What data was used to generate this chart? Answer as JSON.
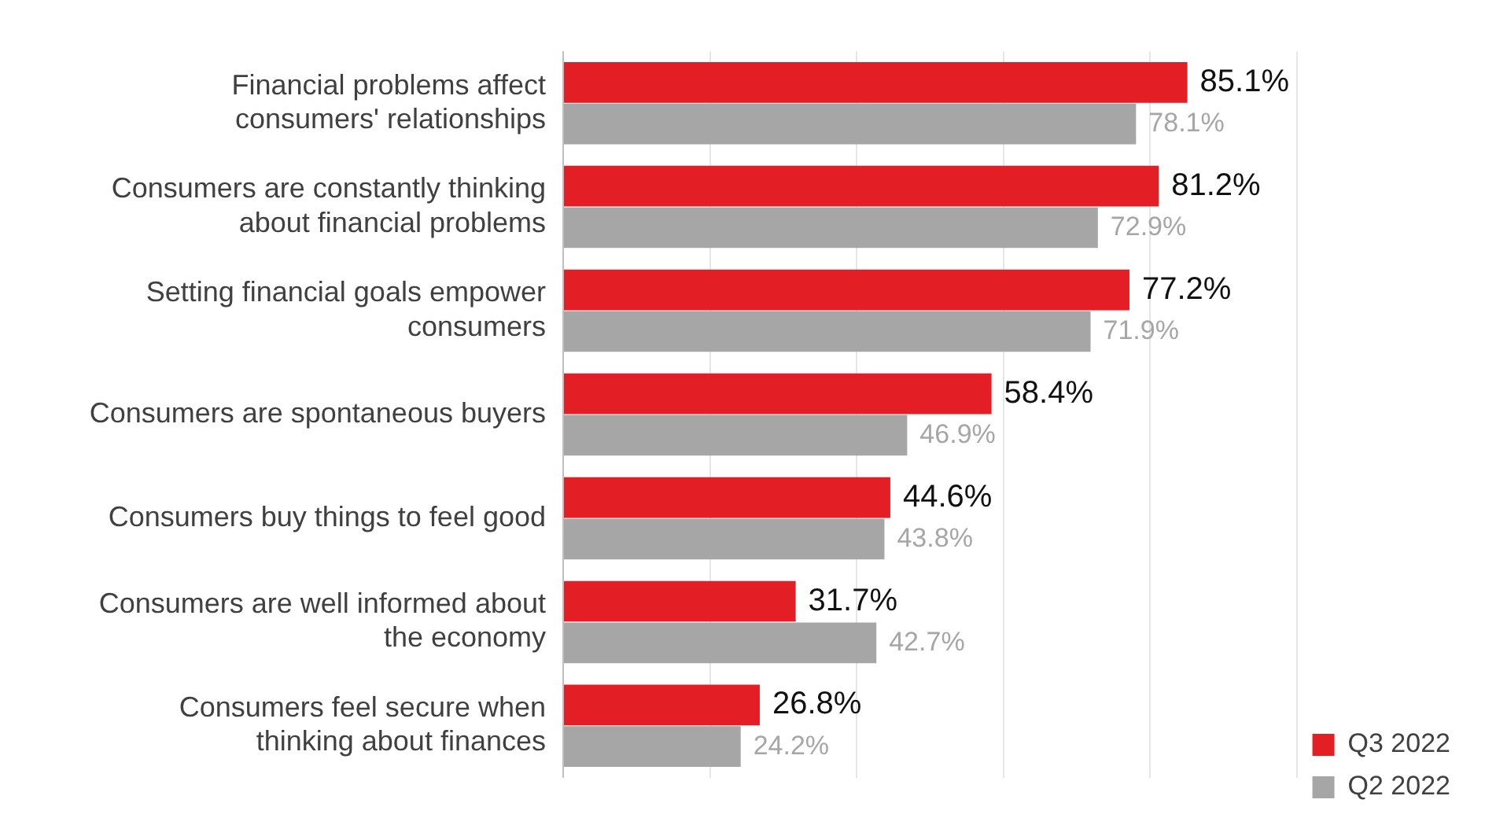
{
  "chart_data": {
    "type": "bar",
    "orientation": "horizontal",
    "categories": [
      "Financial problems affect consumers' relationships",
      "Consumers are constantly thinking about financial problems",
      "Setting financial goals empower consumers",
      "Consumers are spontaneous buyers",
      "Consumers buy things to feel good",
      "Consumers are well informed about the economy",
      "Consumers feel secure when thinking about finances"
    ],
    "series": [
      {
        "name": "Q3 2022",
        "color": "#e31e24",
        "values": [
          85.1,
          81.2,
          77.2,
          58.4,
          44.6,
          31.7,
          26.8
        ],
        "value_labels": [
          "85.1%",
          "81.2%",
          "77.2%",
          "58.4%",
          "44.6%",
          "31.7%",
          "26.8%"
        ]
      },
      {
        "name": "Q2 2022",
        "color": "#a6a6a6",
        "values": [
          78.1,
          72.9,
          71.9,
          46.9,
          43.8,
          42.7,
          24.2
        ],
        "value_labels": [
          "78.1%",
          "72.9%",
          "71.9%",
          "46.9%",
          "43.8%",
          "42.7%",
          "24.2%"
        ]
      }
    ],
    "xlim": [
      0,
      100
    ],
    "xticks": [
      {
        "value": 0,
        "label": null
      },
      {
        "value": 20,
        "label": null
      },
      {
        "value": 40,
        "label": null
      },
      {
        "value": 60,
        "label": null
      },
      {
        "value": 80,
        "label": null
      },
      {
        "value": 100,
        "label": null
      }
    ],
    "grid": "x",
    "legend": "bottom right",
    "tick_labels": "y"
  }
}
